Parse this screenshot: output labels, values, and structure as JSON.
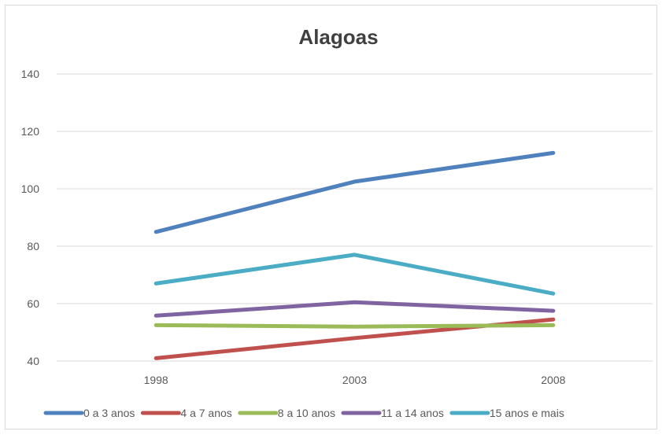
{
  "chart_data": {
    "type": "line",
    "title": "Alagoas",
    "xlabel": "",
    "ylabel": "",
    "categories": [
      "1998",
      "2003",
      "2008"
    ],
    "ylim": [
      40,
      140
    ],
    "yticks": [
      "40",
      "60",
      "80",
      "100",
      "120",
      "140"
    ],
    "grid": true,
    "legend_position": "bottom",
    "series": [
      {
        "name": "0 a 3 anos",
        "color": "#4f81bd",
        "values": [
          85,
          102.5,
          112.5
        ]
      },
      {
        "name": "4 a 7 anos",
        "color": "#c0504d",
        "values": [
          41,
          48,
          54.5
        ]
      },
      {
        "name": "8 a 10 anos",
        "color": "#9bbb59",
        "values": [
          52.5,
          52,
          52.5
        ]
      },
      {
        "name": "11 a 14 anos",
        "color": "#8064a2",
        "values": [
          55.8,
          60.5,
          57.5
        ]
      },
      {
        "name": "15 anos e mais",
        "color": "#4bacc6",
        "values": [
          67,
          77,
          63.5
        ]
      }
    ]
  }
}
